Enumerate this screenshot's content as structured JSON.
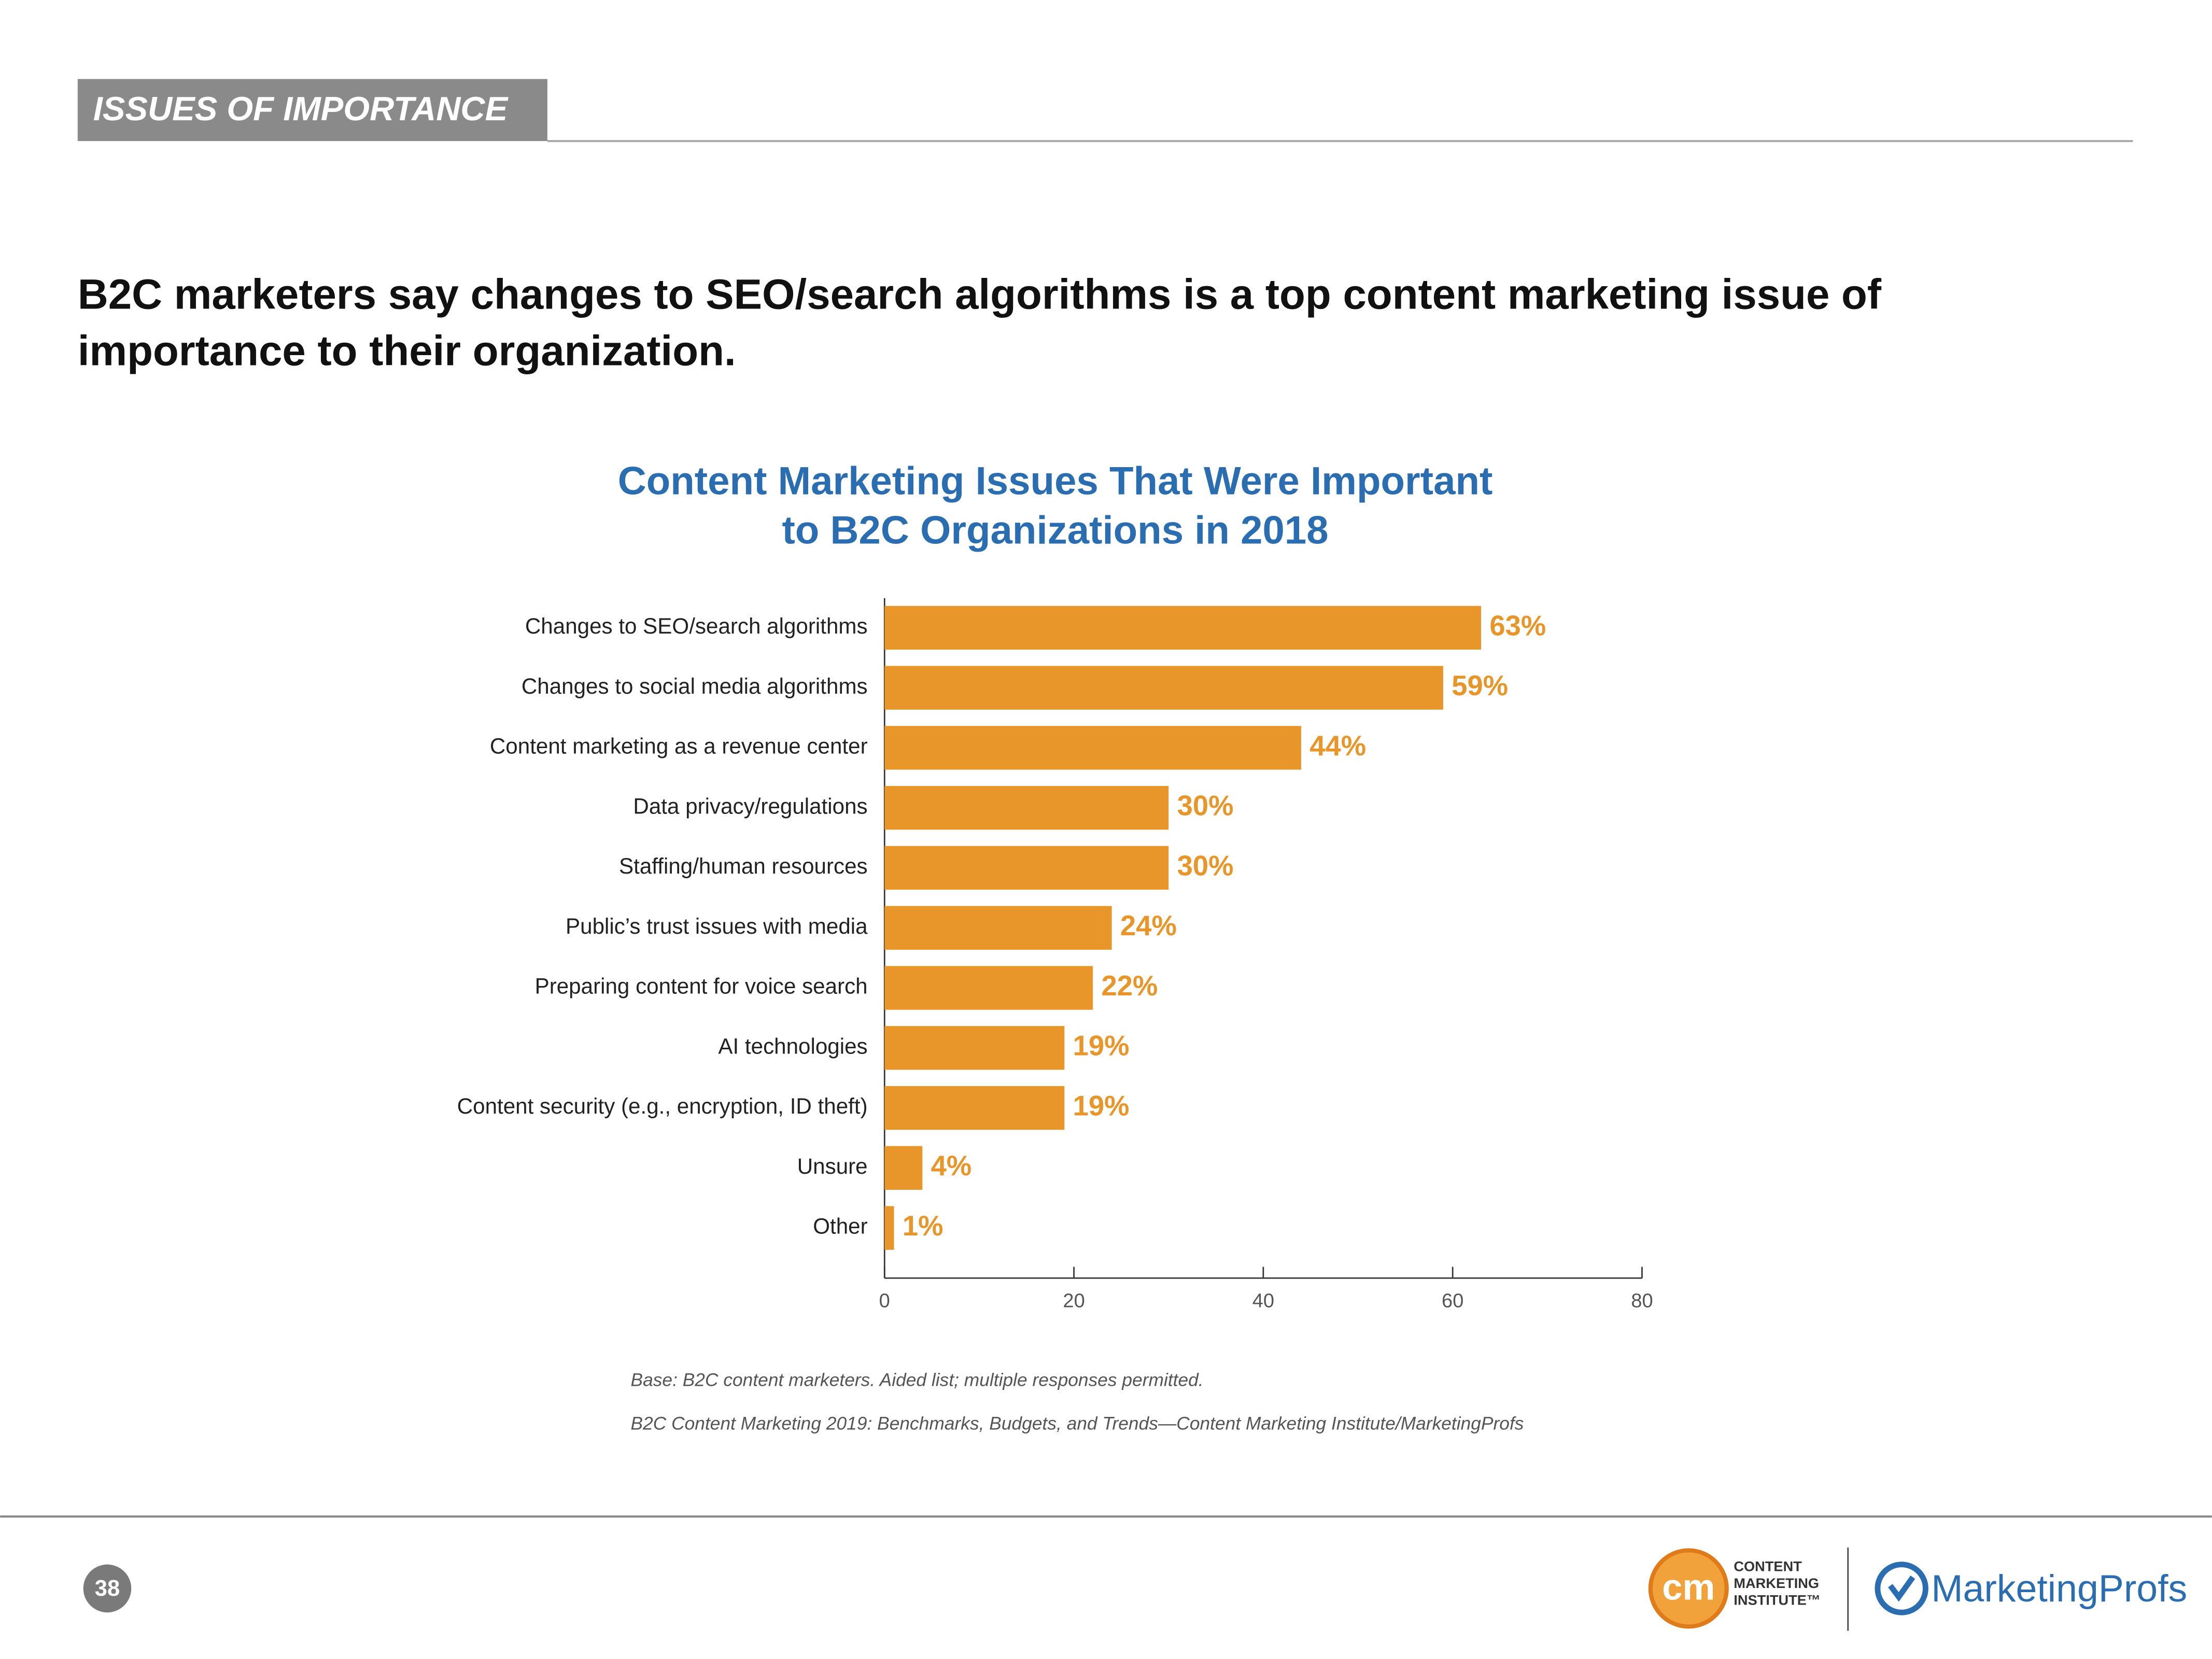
{
  "header": {
    "tag": "ISSUES OF IMPORTANCE"
  },
  "headline": [
    "B2C marketers say changes to SEO/search algorithms is a top content marketing issue of",
    "importance to their organization."
  ],
  "chart_data": {
    "type": "bar",
    "orientation": "horizontal",
    "title": [
      "Content Marketing Issues That Were Important",
      "to B2C Organizations in 2018"
    ],
    "categories": [
      "Changes to SEO/search algorithms",
      "Changes to social media algorithms",
      "Content marketing as a revenue center",
      "Data privacy/regulations",
      "Staffing/human resources",
      "Public’s trust issues with media",
      "Preparing content for voice search",
      "AI technologies",
      "Content security (e.g., encryption, ID theft)",
      "Unsure",
      "Other"
    ],
    "values": [
      63,
      59,
      44,
      30,
      30,
      24,
      22,
      19,
      19,
      4,
      1
    ],
    "value_labels": [
      "63%",
      "59%",
      "44%",
      "30%",
      "30%",
      "24%",
      "22%",
      "19%",
      "19%",
      "4%",
      "1%"
    ],
    "color": "#e8952a",
    "xlim": [
      0,
      80
    ],
    "xticks": [
      0,
      20,
      40,
      60,
      80
    ]
  },
  "notes": [
    "Base: B2C content marketers. Aided list; multiple responses permitted.",
    "B2C Content Marketing 2019: Benchmarks, Budgets, and Trends—Content Marketing Institute/MarketingProfs"
  ],
  "footer": {
    "page_number": "38",
    "cmi_logo": {
      "mark": "cm",
      "lines": [
        "CONTENT",
        "MARKETING",
        "INSTITUTE™"
      ]
    },
    "mprofs_logo": "MarketingProfs"
  }
}
